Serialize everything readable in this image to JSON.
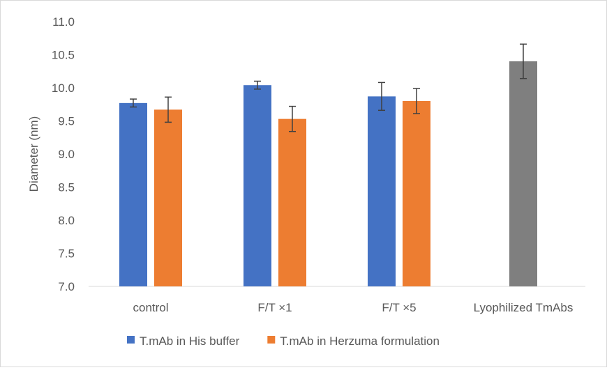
{
  "chart_data": {
    "type": "bar",
    "title": "",
    "xlabel": "",
    "ylabel": "Diameter (nm)",
    "ylim": [
      7.0,
      11.0
    ],
    "yticks": [
      "7.0",
      "7.5",
      "8.0",
      "8.5",
      "9.0",
      "9.5",
      "10.0",
      "10.5",
      "11.0"
    ],
    "ytick_values": [
      7.0,
      7.5,
      8.0,
      8.5,
      9.0,
      9.5,
      10.0,
      10.5,
      11.0
    ],
    "categories": [
      "control",
      "F/T ×1",
      "F/T ×5",
      "Lyophilized TmAbs"
    ],
    "series": [
      {
        "name": "T.mAb in His buffer",
        "color": "#4472c4",
        "values": [
          9.77,
          10.04,
          9.87,
          null
        ],
        "errors": [
          0.06,
          0.06,
          0.21,
          null
        ]
      },
      {
        "name": "T.mAb in Herzuma formulation",
        "color": "#ed7d31",
        "values": [
          9.67,
          9.53,
          9.8,
          null
        ],
        "errors": [
          0.19,
          0.19,
          0.19,
          null
        ]
      },
      {
        "name": "",
        "color": "#7f7f7f",
        "values": [
          null,
          null,
          null,
          10.4
        ],
        "errors": [
          null,
          null,
          null,
          0.26
        ]
      }
    ],
    "grid": false,
    "legend_position": "bottom"
  }
}
